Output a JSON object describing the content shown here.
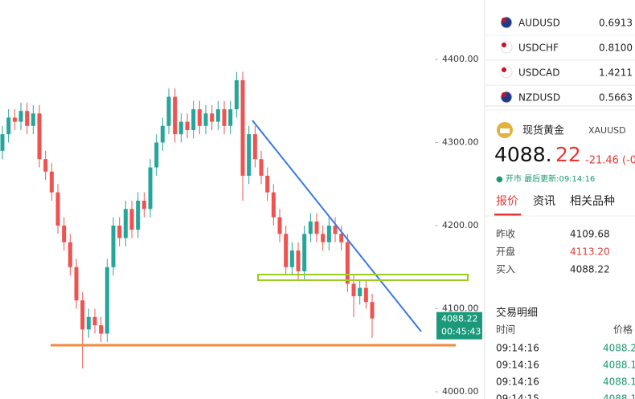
{
  "chart_data": {
    "type": "candlestick",
    "open": [
      4290,
      4310,
      4330,
      4325,
      4338,
      4320,
      4335,
      4280,
      4265,
      4240,
      4200,
      4180,
      4150,
      4110,
      4075,
      4090,
      4080,
      4070,
      4150,
      4200,
      4185,
      4220,
      4195,
      4230,
      4220,
      4270,
      4300,
      4320,
      4355,
      4310,
      4325,
      4315,
      4340,
      4320,
      4335,
      4325,
      4340,
      4320,
      4340,
      4375,
      4260,
      4310,
      4280,
      4260,
      4240,
      4210,
      4190,
      4150,
      4170,
      4145,
      4190,
      4205,
      4190,
      4180,
      4200,
      4190,
      4180,
      4130,
      4115,
      4125,
      4108
    ],
    "high": [
      4320,
      4340,
      4340,
      4348,
      4348,
      4345,
      4345,
      4290,
      4275,
      4250,
      4210,
      4190,
      4160,
      4120,
      4100,
      4100,
      4090,
      4160,
      4210,
      4210,
      4230,
      4230,
      4240,
      4240,
      4280,
      4310,
      4330,
      4365,
      4365,
      4335,
      4335,
      4350,
      4350,
      4345,
      4345,
      4350,
      4350,
      4350,
      4385,
      4385,
      4320,
      4320,
      4290,
      4270,
      4250,
      4220,
      4200,
      4180,
      4180,
      4200,
      4215,
      4215,
      4200,
      4210,
      4210,
      4200,
      4190,
      4140,
      4135,
      4135,
      4118
    ],
    "low": [
      4280,
      4300,
      4315,
      4315,
      4310,
      4310,
      4270,
      4255,
      4230,
      4190,
      4170,
      4140,
      4100,
      4028,
      4065,
      4070,
      4060,
      4060,
      4140,
      4175,
      4175,
      4185,
      4185,
      4210,
      4210,
      4260,
      4290,
      4310,
      4300,
      4300,
      4305,
      4305,
      4310,
      4310,
      4315,
      4315,
      4310,
      4310,
      4330,
      4230,
      4250,
      4270,
      4250,
      4230,
      4200,
      4180,
      4140,
      4140,
      4135,
      4135,
      4180,
      4180,
      4170,
      4170,
      4180,
      4170,
      4120,
      4090,
      4105,
      4100,
      4065
    ],
    "close": [
      4310,
      4330,
      4325,
      4338,
      4320,
      4335,
      4280,
      4265,
      4240,
      4200,
      4180,
      4150,
      4110,
      4075,
      4090,
      4080,
      4070,
      4150,
      4200,
      4185,
      4220,
      4195,
      4230,
      4220,
      4270,
      4300,
      4320,
      4355,
      4310,
      4325,
      4315,
      4340,
      4320,
      4335,
      4325,
      4340,
      4320,
      4340,
      4375,
      4260,
      4310,
      4280,
      4260,
      4240,
      4210,
      4190,
      4150,
      4170,
      4145,
      4190,
      4205,
      4190,
      4180,
      4200,
      4190,
      4180,
      4130,
      4115,
      4125,
      4108,
      4088.22
    ],
    "up_color": "#26a69a",
    "down_color": "#ef5350",
    "ylim": [
      3991.3,
      4471.5
    ],
    "yticks": [
      {
        "value": 4000,
        "label": "4000.00"
      },
      {
        "value": 4100,
        "label": "4100.00"
      },
      {
        "value": 4200,
        "label": "4200.00"
      },
      {
        "value": 4300,
        "label": "4300.00"
      },
      {
        "value": 4400,
        "label": "4400.00"
      }
    ],
    "last_price": 4088.22,
    "countdown": "00:45:43"
  },
  "watchlist": [
    {
      "symbol": "AUDUSD",
      "price": "0.6913"
    },
    {
      "symbol": "USDCHF",
      "price": "0.8100"
    },
    {
      "symbol": "USDCAD",
      "price": "1.4211"
    },
    {
      "symbol": "NZDUSD",
      "price": "0.5663"
    }
  ],
  "quote": {
    "name": "现货黄金",
    "code": "XAUUSD",
    "price_int": "4088.",
    "price_dec": "22",
    "change": "-21.46 (-0",
    "status": "● 开市 最后更新:09:14:16",
    "tabs": [
      "报价",
      "资讯",
      "相关品种"
    ],
    "rows": [
      [
        "昨收",
        "4109.68"
      ],
      [
        "开盘",
        "4113.20"
      ],
      [
        "买入",
        "4088.22"
      ]
    ]
  },
  "trades": {
    "title": "交易明细",
    "col_time": "时间",
    "col_price": "价格",
    "rows": [
      [
        "09:14:16",
        "4088.2"
      ],
      [
        "09:14:16",
        "4088.1"
      ],
      [
        "09:14:16",
        "4088.1"
      ],
      [
        "09:14:15",
        "4088.1"
      ]
    ]
  }
}
